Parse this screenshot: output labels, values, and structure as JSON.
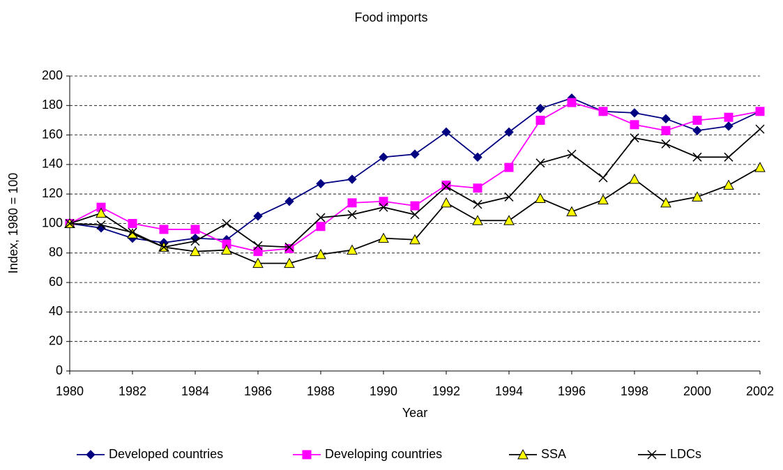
{
  "chart_data": {
    "type": "line",
    "title": "Food imports",
    "xlabel": "Year",
    "ylabel": "Index, 1980 = 100",
    "x": [
      1980,
      1981,
      1982,
      1983,
      1984,
      1985,
      1986,
      1987,
      1988,
      1989,
      1990,
      1991,
      1992,
      1993,
      1994,
      1995,
      1996,
      1997,
      1998,
      1999,
      2000,
      2001,
      2002
    ],
    "series": [
      {
        "name": "Developed countries",
        "color": "#000080",
        "marker": "diamond",
        "marker_color": "#000080",
        "values": [
          100,
          97,
          90,
          87,
          90,
          89,
          105,
          115,
          127,
          130,
          145,
          147,
          162,
          145,
          162,
          178,
          185,
          176,
          175,
          171,
          163,
          166,
          176
        ]
      },
      {
        "name": "Developing countries",
        "color": "#ff00ff",
        "marker": "square",
        "marker_color": "#ff00ff",
        "values": [
          100,
          111,
          100,
          96,
          96,
          86,
          81,
          83,
          98,
          114,
          115,
          112,
          126,
          124,
          138,
          170,
          182,
          176,
          167,
          163,
          170,
          172,
          176
        ]
      },
      {
        "name": "SSA",
        "color": "#000000",
        "marker": "triangle",
        "marker_color": "#ffff00",
        "values": [
          100,
          107,
          93,
          84,
          81,
          82,
          73,
          73,
          79,
          82,
          90,
          89,
          114,
          102,
          102,
          117,
          108,
          116,
          130,
          114,
          118,
          126,
          138
        ]
      },
      {
        "name": "LDCs",
        "color": "#000000",
        "marker": "x",
        "marker_color": "#000000",
        "values": [
          100,
          99,
          94,
          84,
          88,
          100,
          85,
          84,
          104,
          106,
          111,
          106,
          125,
          113,
          118,
          141,
          147,
          131,
          158,
          154,
          145,
          145,
          164
        ]
      }
    ],
    "xlim": [
      1980,
      2002
    ],
    "xticks": [
      1980,
      1982,
      1984,
      1986,
      1988,
      1990,
      1992,
      1994,
      1996,
      1998,
      2000,
      2002
    ],
    "ylim": [
      0,
      200
    ],
    "yticks": [
      0,
      20,
      40,
      60,
      80,
      100,
      120,
      140,
      160,
      180,
      200
    ],
    "grid": true,
    "legend": "bottom"
  }
}
